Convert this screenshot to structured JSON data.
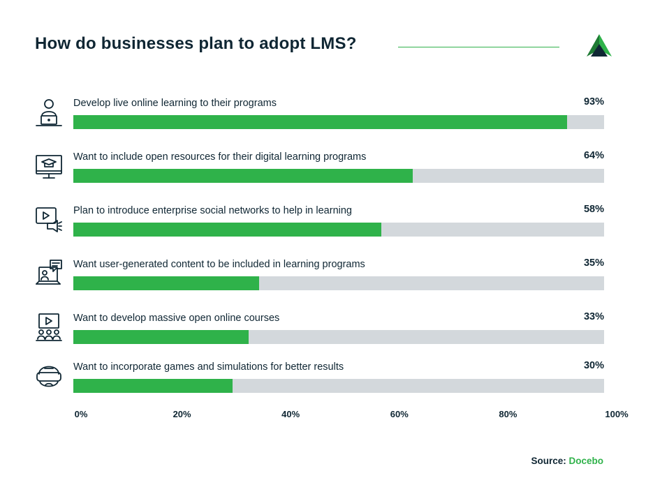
{
  "title": "How do businesses plan to adopt LMS?",
  "colors": {
    "accent": "#2fb24a",
    "track": "#d3d8dc",
    "text": "#0f2633"
  },
  "chart_data": {
    "type": "bar",
    "orientation": "horizontal",
    "title": "How do businesses plan to adopt LMS?",
    "categories": [
      "Develop live online learning to their programs",
      "Want to include open resources for their digital learning programs",
      "Plan to introduce enterprise social networks to help in learning",
      "Want user-generated content to be included in learning programs",
      "Want to develop massive open online courses",
      "Want to incorporate games and simulations for better results"
    ],
    "values": [
      93,
      64,
      58,
      35,
      33,
      30
    ],
    "value_labels": [
      "93%",
      "64%",
      "58%",
      "35%",
      "33%",
      "30%"
    ],
    "icons": [
      "person-laptop-icon",
      "monitor-graduation-cap-icon",
      "video-megaphone-icon",
      "laptop-chat-user-icon",
      "video-audience-icon",
      "vr-headset-icon"
    ],
    "xlim": [
      0,
      100
    ],
    "x_ticks": [
      "0%",
      "20%",
      "40%",
      "60%",
      "80%",
      "100%"
    ],
    "grid": false,
    "legend": "none"
  },
  "source": {
    "label": "Source:",
    "name": "Docebo"
  }
}
